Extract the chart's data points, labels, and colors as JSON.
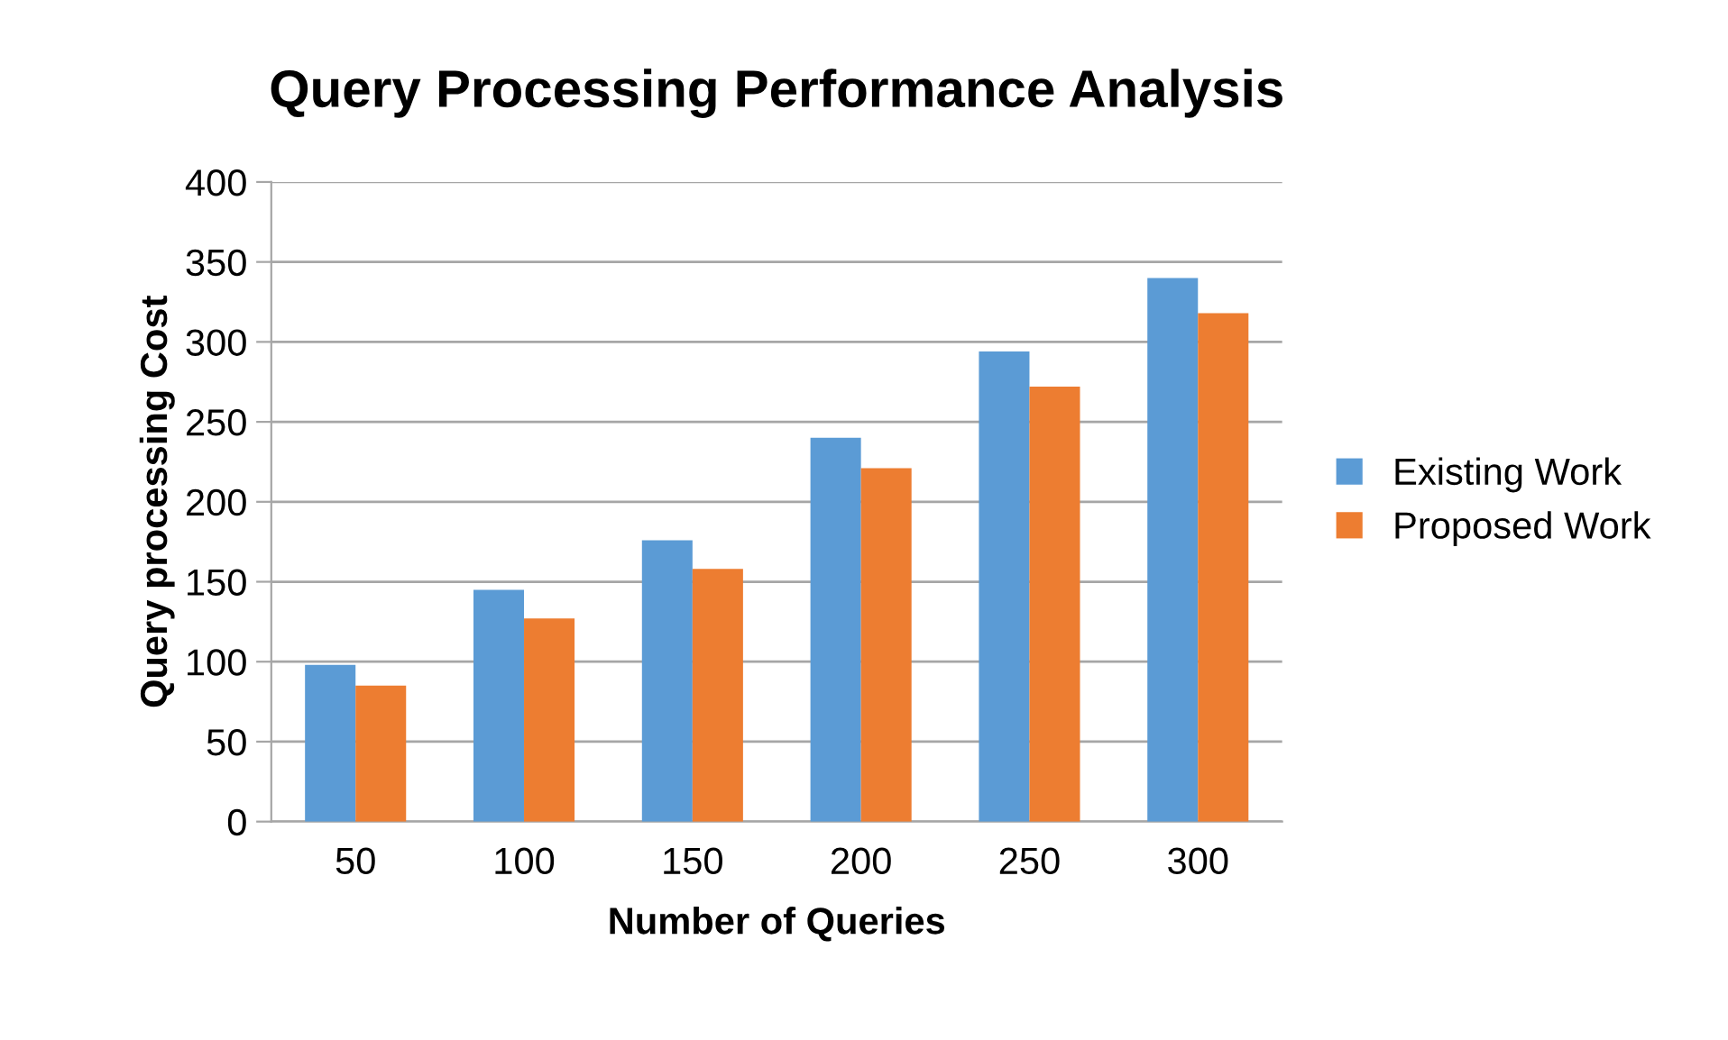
{
  "chart_data": {
    "type": "bar",
    "title": "Query Processing Performance Analysis",
    "xlabel": "Number of Queries",
    "ylabel": "Query processing Cost",
    "categories": [
      "50",
      "100",
      "150",
      "200",
      "250",
      "300"
    ],
    "series": [
      {
        "name": "Existing Work",
        "color": "#5b9bd5",
        "values": [
          98,
          145,
          176,
          240,
          294,
          340
        ]
      },
      {
        "name": "Proposed Work",
        "color": "#ed7d31",
        "values": [
          85,
          127,
          158,
          221,
          272,
          318
        ]
      }
    ],
    "ylim": [
      0,
      400
    ],
    "yticks": [
      0,
      50,
      100,
      150,
      200,
      250,
      300,
      350,
      400
    ],
    "grid": "y",
    "legend": "right"
  }
}
